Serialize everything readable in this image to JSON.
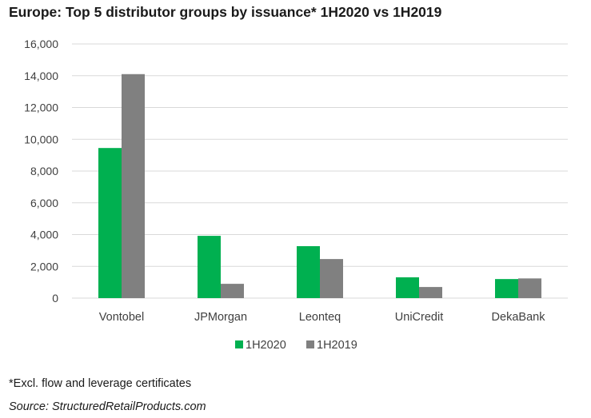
{
  "chart_data": {
    "type": "bar",
    "title": "Europe: Top 5 distributor groups by issuance* 1H2020 vs 1H2019",
    "xlabel": "",
    "ylabel": "",
    "ylim": [
      0,
      16000
    ],
    "yticks": [
      0,
      2000,
      4000,
      6000,
      8000,
      10000,
      12000,
      14000,
      16000
    ],
    "ytick_labels": [
      "0",
      "2,000",
      "4,000",
      "6,000",
      "8,000",
      "10,000",
      "12,000",
      "14,000",
      "16,000"
    ],
    "grid": true,
    "legend_position": "bottom",
    "categories": [
      "Vontobel",
      "JPMorgan",
      "Leonteq",
      "UniCredit",
      "DekaBank"
    ],
    "series": [
      {
        "name": "1H2020",
        "color": "#00b050",
        "values": [
          9450,
          3920,
          3270,
          1310,
          1200
        ]
      },
      {
        "name": "1H2019",
        "color": "#808080",
        "values": [
          14100,
          900,
          2460,
          700,
          1240
        ]
      }
    ]
  },
  "footnote": "*Excl. flow and leverage certificates",
  "source": "Source: StructuredRetailProducts.com"
}
